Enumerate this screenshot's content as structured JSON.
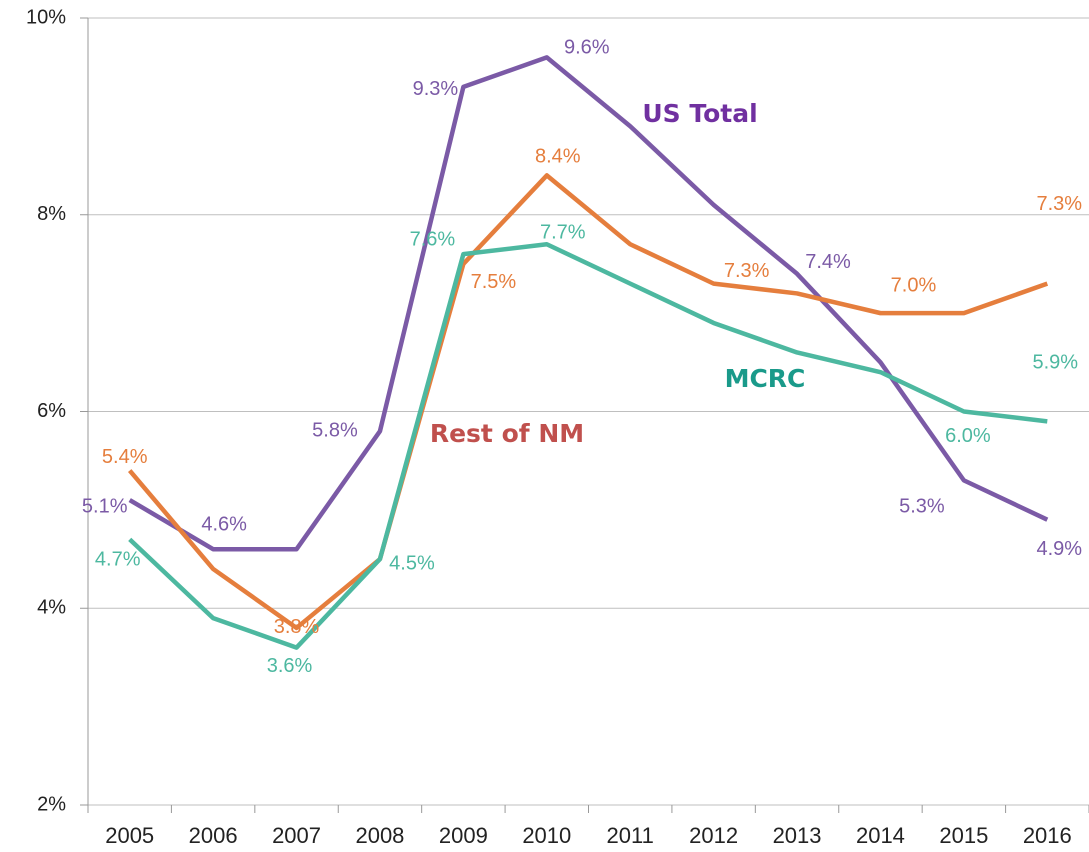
{
  "chart_data": {
    "type": "line",
    "categories": [
      "2005",
      "2006",
      "2007",
      "2008",
      "2009",
      "2010",
      "2011",
      "2012",
      "2013",
      "2014",
      "2015",
      "2016"
    ],
    "ylim": [
      2,
      10
    ],
    "yticks": [
      {
        "value": 2,
        "label": "2%"
      },
      {
        "value": 4,
        "label": "4%"
      },
      {
        "value": 6,
        "label": "6%"
      },
      {
        "value": 8,
        "label": "8%"
      },
      {
        "value": 10,
        "label": "10%"
      }
    ],
    "grid": true,
    "series": [
      {
        "name": "US Total",
        "color": "#7b5aa6",
        "label_color": "#7030a0",
        "values": [
          5.1,
          4.6,
          4.6,
          5.8,
          9.3,
          9.6,
          8.9,
          8.1,
          7.4,
          6.5,
          5.3,
          4.9
        ],
        "value_labels": [
          "5.1%",
          "4.6%",
          null,
          "5.8%",
          "9.3%",
          "9.6%",
          null,
          null,
          "7.4%",
          null,
          "5.3%",
          "4.9%"
        ]
      },
      {
        "name": "Rest of NM",
        "color": "#e57e3d",
        "label_color": "#c0504d",
        "values": [
          5.4,
          4.4,
          3.8,
          4.5,
          7.5,
          8.4,
          7.7,
          7.3,
          7.2,
          7.0,
          7.0,
          7.3
        ],
        "value_labels": [
          "5.4%",
          null,
          "3.8%",
          null,
          "7.5%",
          "8.4%",
          null,
          "7.3%",
          null,
          "7.0%",
          null,
          "7.3%"
        ]
      },
      {
        "name": "MCRC",
        "color": "#4db8a0",
        "label_color": "#1a9a8a",
        "values": [
          4.7,
          3.9,
          3.6,
          4.5,
          7.6,
          7.7,
          7.3,
          6.9,
          6.6,
          6.4,
          6.0,
          5.9
        ],
        "value_labels": [
          "4.7%",
          null,
          "3.6%",
          "4.5%",
          "7.6%",
          "7.7%",
          null,
          null,
          null,
          null,
          "6.0%",
          "5.9%"
        ]
      }
    ]
  }
}
